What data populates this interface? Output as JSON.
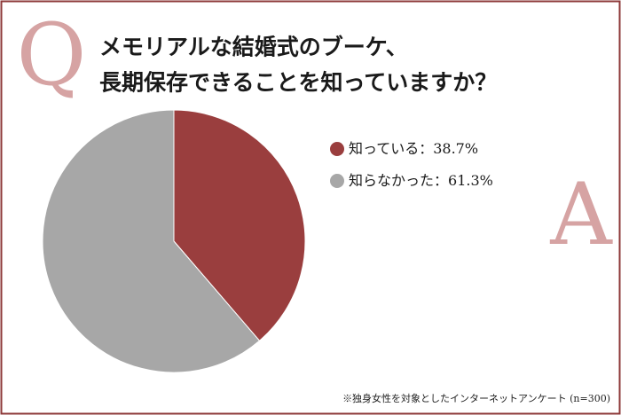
{
  "chart_data": {
    "type": "pie",
    "title_lines": [
      "メモリアルな結婚式のブーケ、",
      "長期保存できることを知っていますか？"
    ],
    "q_mark": "Q",
    "a_mark": "A",
    "categories": [
      "知っている",
      "知らなかった"
    ],
    "values": [
      38.7,
      61.3
    ],
    "value_labels": [
      "38.7%",
      "61.3%"
    ],
    "label_separator": "：",
    "colors": [
      "#9a3e3e",
      "#a7a7a7"
    ],
    "footnote": "※独身女性を対象としたインターネットアンケート (n=300)"
  }
}
